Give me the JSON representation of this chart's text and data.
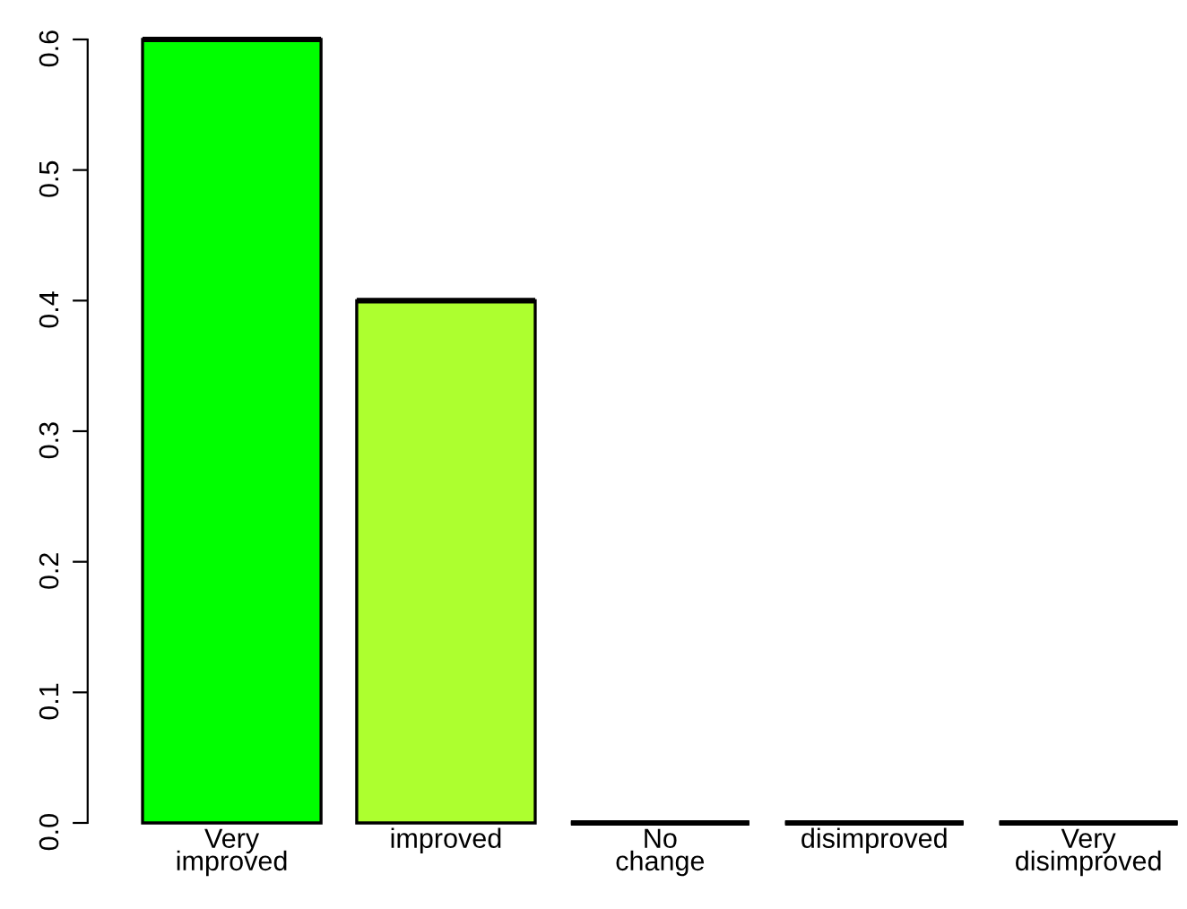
{
  "chart_data": {
    "type": "bar",
    "categories": [
      "Very\nimproved",
      "improved",
      "No\nchange",
      "disimproved",
      "Very\ndisimproved"
    ],
    "values": [
      0.6,
      0.4,
      0,
      0,
      0
    ],
    "colors": [
      "#00ff00",
      "#adff2f",
      "#000000",
      "#000000",
      "#000000"
    ],
    "ylim": [
      0,
      0.6
    ],
    "yticks": [
      {
        "value": 0,
        "label": "0.0"
      },
      0.1,
      0.2,
      0.3,
      0.4,
      0.5,
      0.6
    ],
    "grid": false
  }
}
